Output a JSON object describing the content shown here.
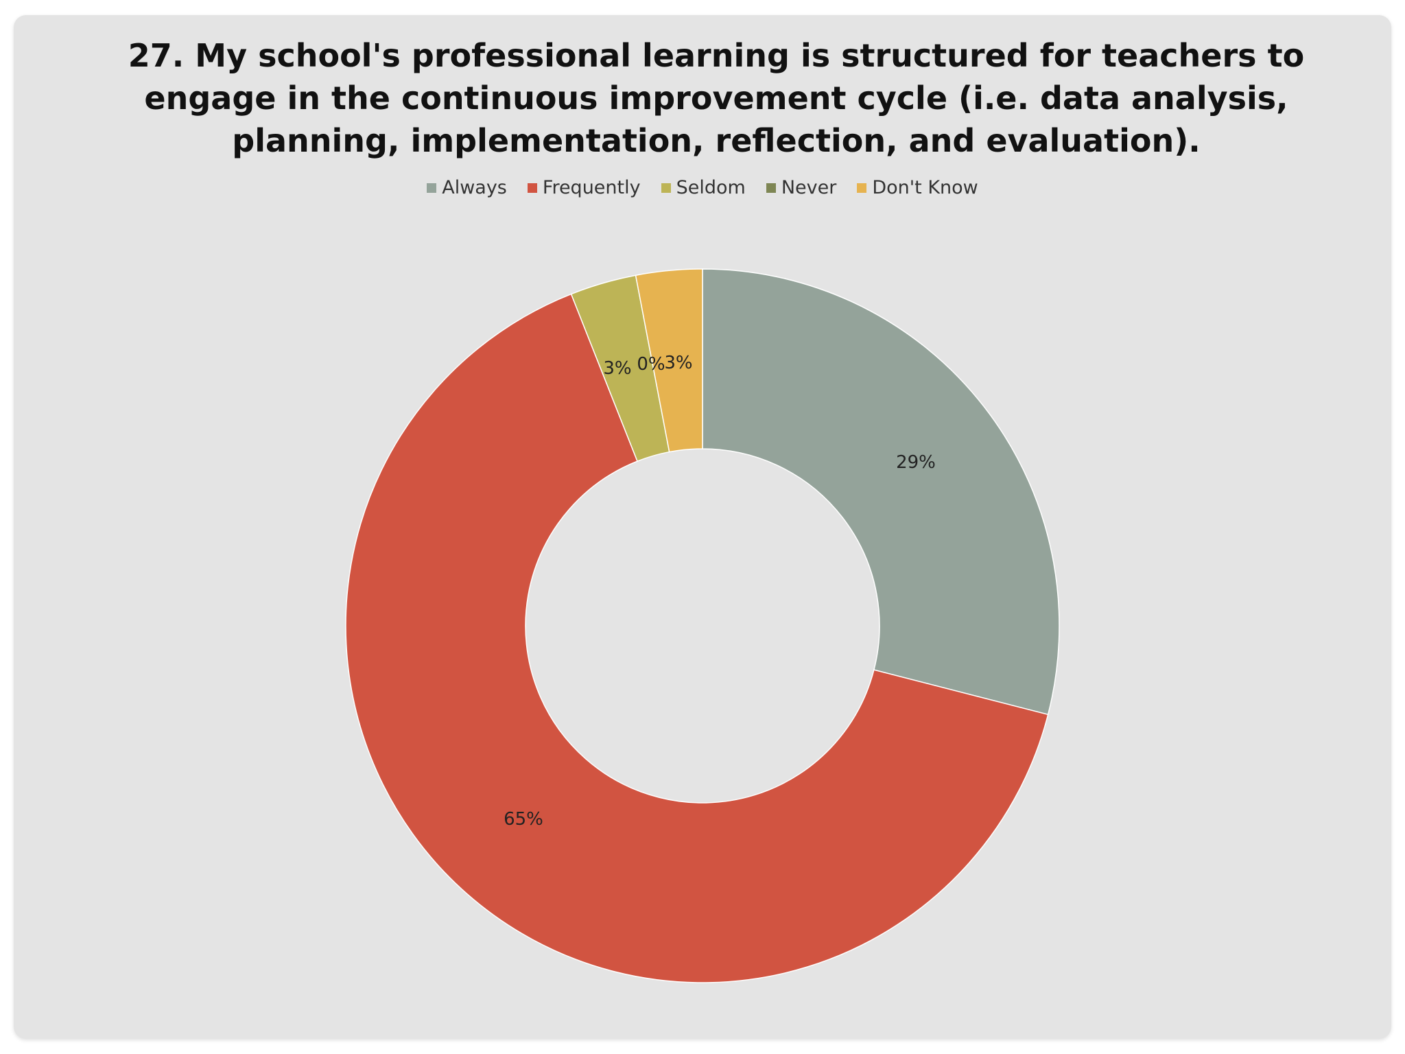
{
  "chart_data": {
    "type": "pie",
    "title": "27. My school's professional learning is structured for teachers to engage in the continuous improvement cycle (i.e. data analysis, planning, implementation, reflection, and evaluation).",
    "legend_position": "top",
    "categories": [
      "Always",
      "Frequently",
      "Seldom",
      "Never",
      "Don't Know"
    ],
    "values": [
      29,
      65,
      3,
      0,
      3
    ],
    "labels": [
      "29%",
      "65%",
      "3%",
      "0%",
      "3%"
    ],
    "colors": [
      "#94a39a",
      "#d15441",
      "#bdb456",
      "#7e8654",
      "#e6b350"
    ]
  }
}
